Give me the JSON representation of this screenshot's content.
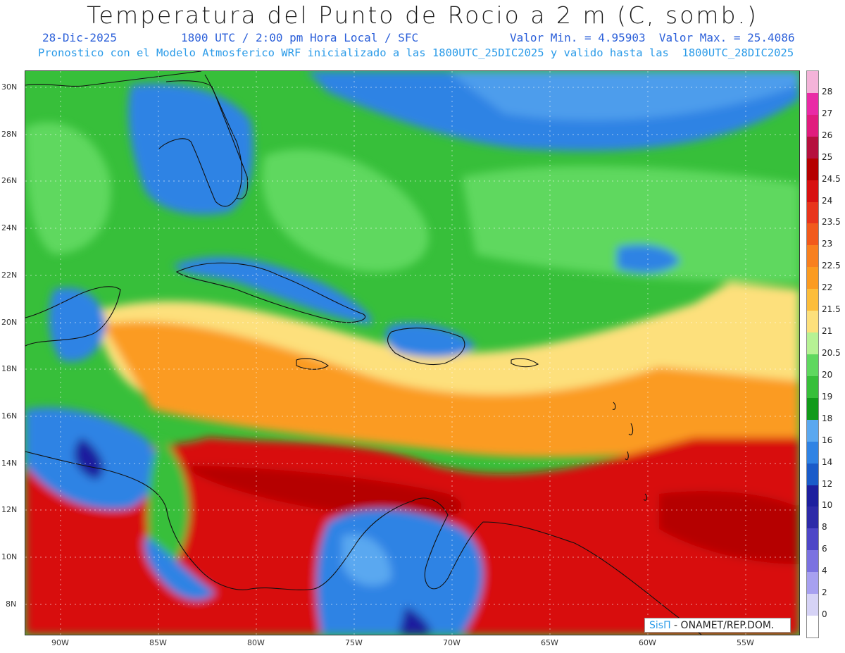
{
  "header": {
    "title": "Temperatura del Punto de Rocio a 2 m (C, somb.)",
    "date": "28-Dic-2025",
    "time": "1800 UTC / 2:00 pm Hora Local / SFC",
    "min_max": "Valor Min. = 4.95903  Valor Max. = 25.4086",
    "subtitle": "Pronostico con el Modelo Atmosferico WRF inicializado a las 1800UTC_25DIC2025 y valido hasta las  1800UTC_28DIC2025"
  },
  "map": {
    "lat_labels": [
      "30N",
      "28N",
      "26N",
      "24N",
      "22N",
      "20N",
      "18N",
      "16N",
      "14N",
      "12N",
      "10N",
      "8N"
    ],
    "lon_labels": [
      "90W",
      "85W",
      "80W",
      "75W",
      "70W",
      "65W",
      "60W",
      "55W"
    ]
  },
  "legend": {
    "levels": [
      "28",
      "27",
      "26",
      "25",
      "24.5",
      "24",
      "23.5",
      "23",
      "22.5",
      "22",
      "21.5",
      "21",
      "20.5",
      "20",
      "19",
      "18",
      "16",
      "14",
      "12",
      "10",
      "8",
      "6",
      "4",
      "2",
      "0"
    ],
    "colors": [
      "#f4b3d9",
      "#e92aa6",
      "#e01c7e",
      "#b5103e",
      "#b50000",
      "#d81111",
      "#e8351c",
      "#f15a1c",
      "#f8801f",
      "#fb9b20",
      "#fcbd3a",
      "#fde07b",
      "#b6f294",
      "#5fd85f",
      "#37bf3a",
      "#119a1a",
      "#5aa8f0",
      "#2f83e4",
      "#1a5bc9",
      "#1d1f9e",
      "#2d2aa8",
      "#4e46c7",
      "#7b72e0",
      "#a7a0f0",
      "#d6d3f6",
      "#ffffff"
    ]
  },
  "credit": {
    "brand": "SisΠ",
    "rest": " - ONAMET/REP.DOM."
  }
}
